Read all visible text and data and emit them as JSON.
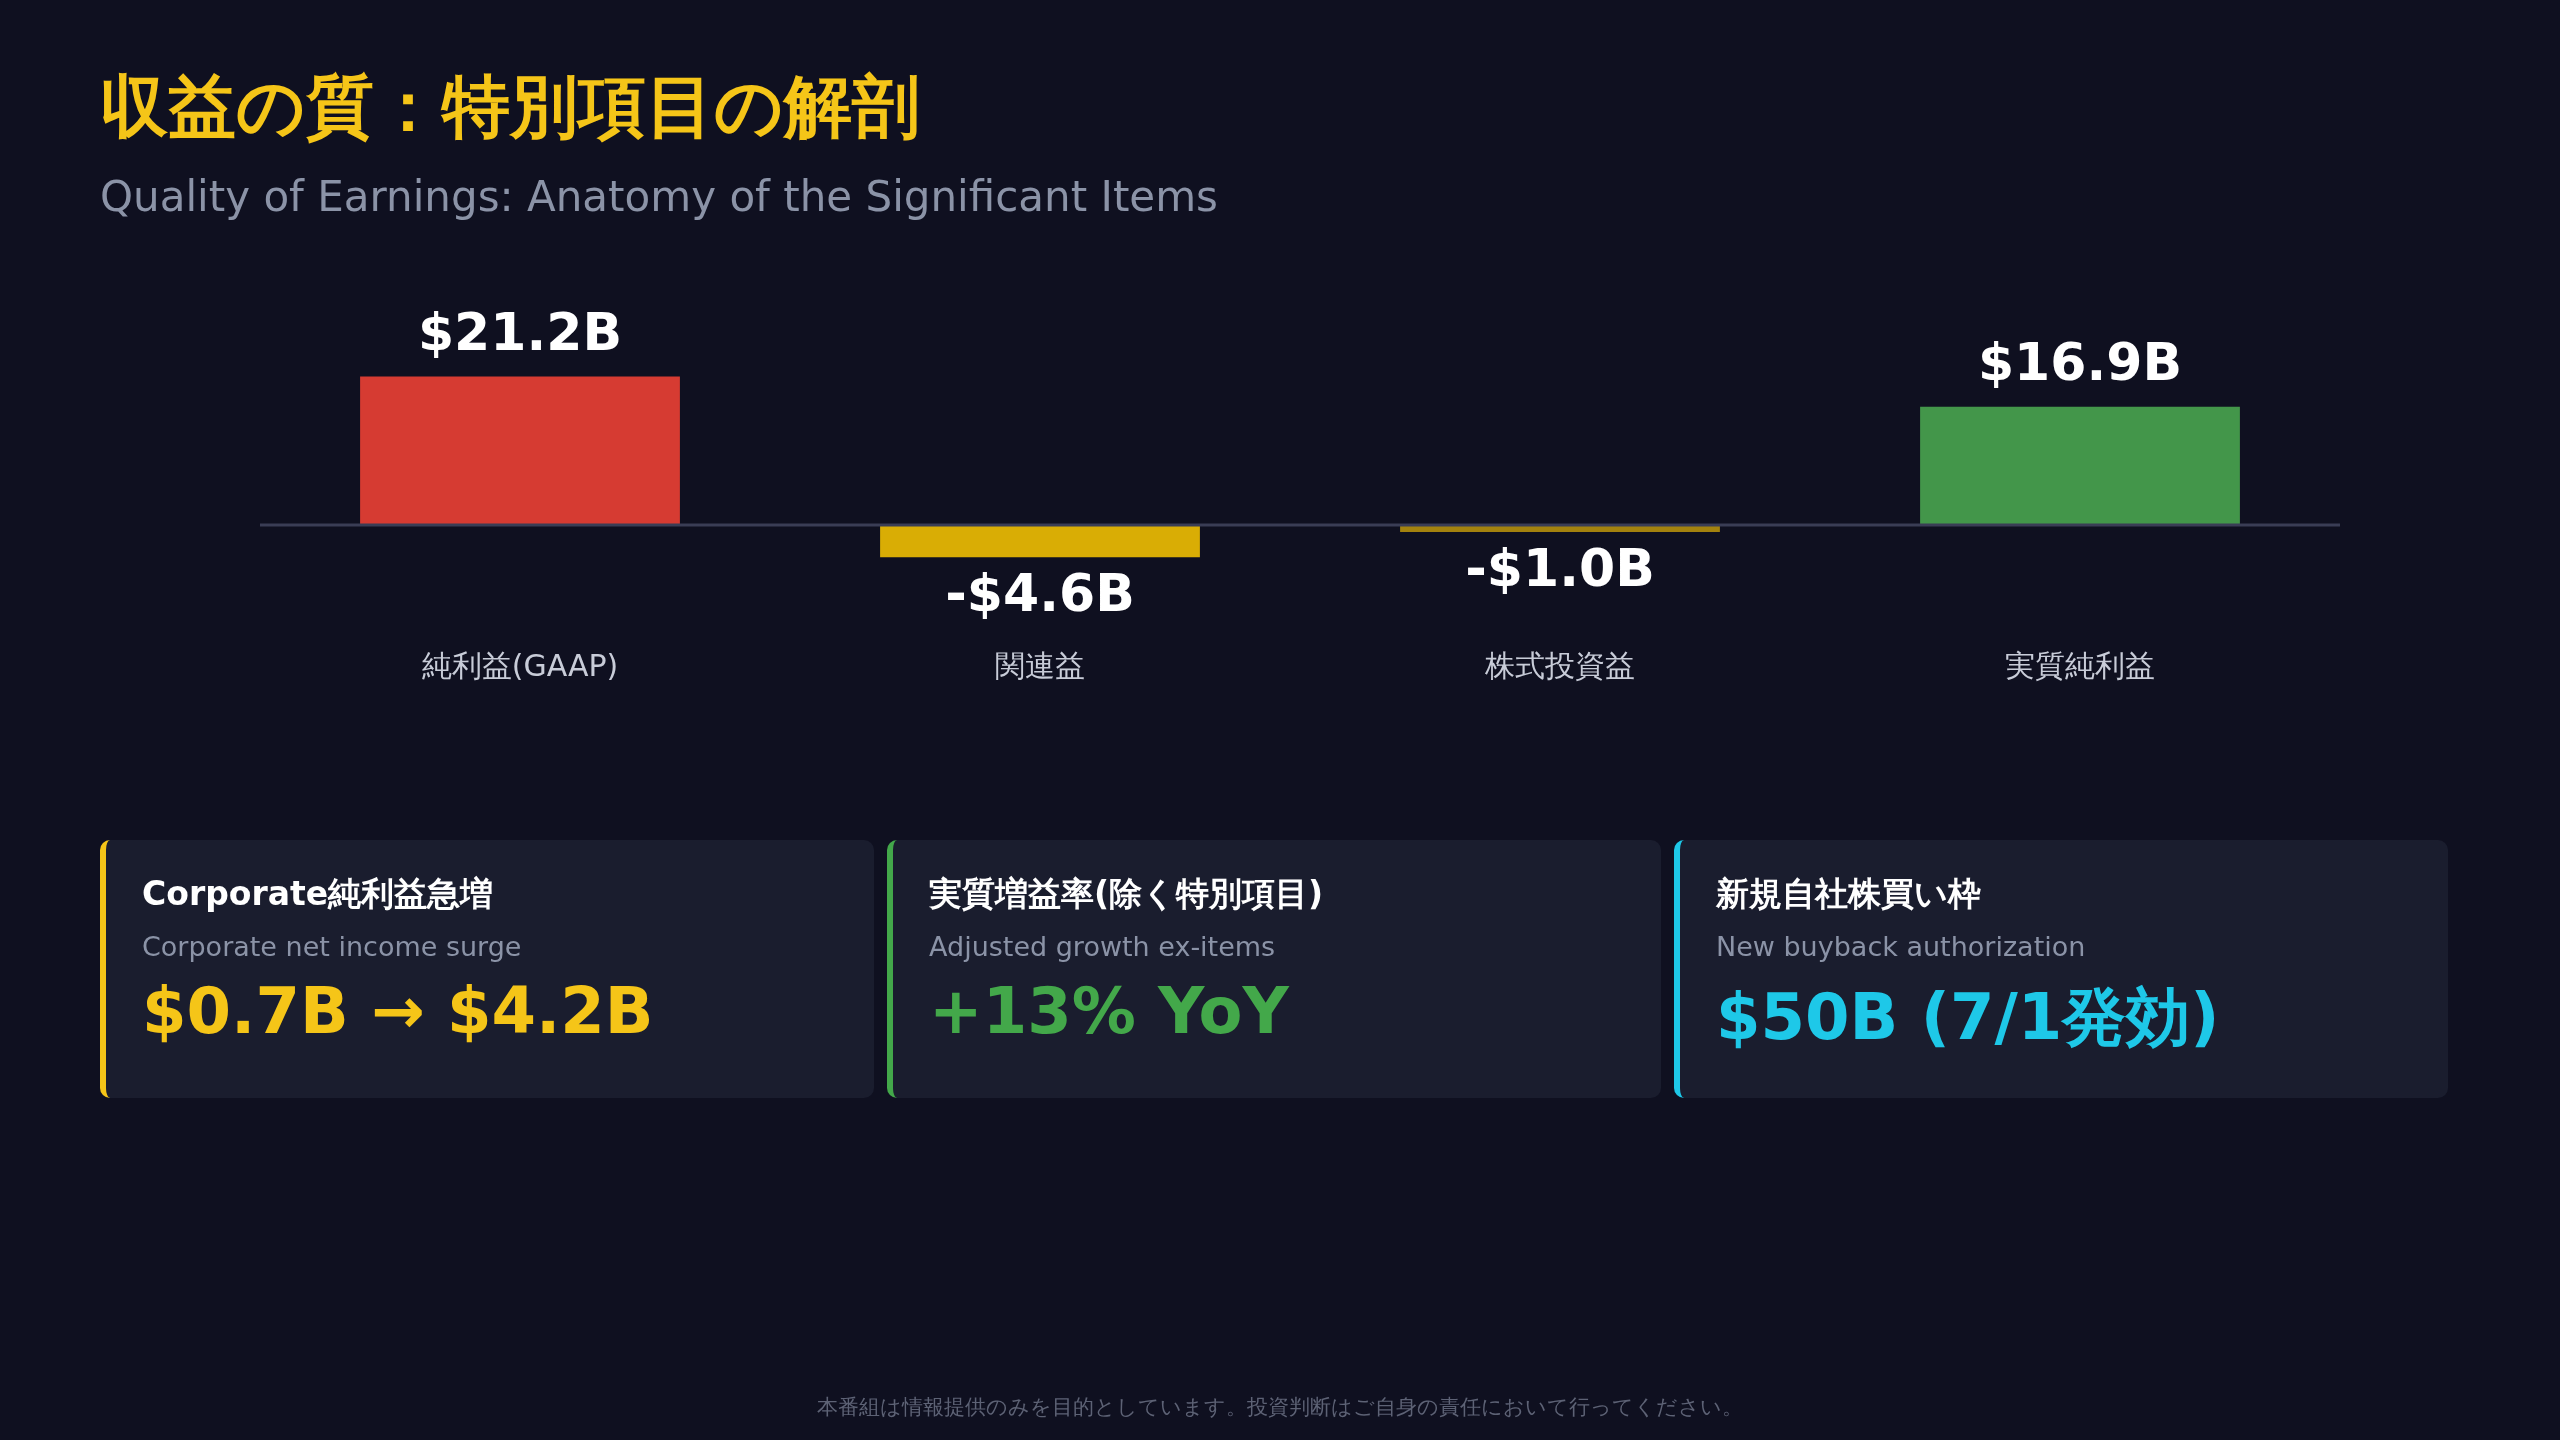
{
  "chart_data": [
    {
      "type": "bar",
      "title": "収益の質：特別項目の解剖",
      "subtitle": "Quality of Earnings: Anatomy of the Significant Items",
      "categories": [
        "純利益(GAAP)",
        "関連益",
        "株式投資益",
        "実質純利益"
      ],
      "values": [
        21.2,
        -4.6,
        -1.0,
        16.9
      ],
      "tick_labels": "x",
      "colors": [
        "#d63b32",
        "#d9ad05",
        "#a3820e",
        "#43964a"
      ],
      "value_labels": [
        "$21.2B",
        "-$4.6B",
        "-$1.0B",
        "$16.9B"
      ],
      "legend": false,
      "annotations": [
        "本番組は情報提供のみを目的としています。投資判断はご自身の責任において行ってください。"
      ]
    },
    {
      "type": "other",
      "title": "Corporate純利益急増",
      "subtitle": "Corporate net income surge",
      "annotations": [
        "$0.7B → $4.2B"
      ],
      "color": "#f5c518"
    },
    {
      "type": "other",
      "title": "実質増益率(除く特別項目)",
      "subtitle": "Adjusted growth ex-items",
      "annotations": [
        "+13% YoY"
      ],
      "color": "#43a84a"
    },
    {
      "type": "other",
      "title": "新規自社株買い枠",
      "subtitle": "New buyback authorization",
      "annotations": [
        "$50B (7/1発効)"
      ],
      "color": "#1ec8e8"
    }
  ]
}
